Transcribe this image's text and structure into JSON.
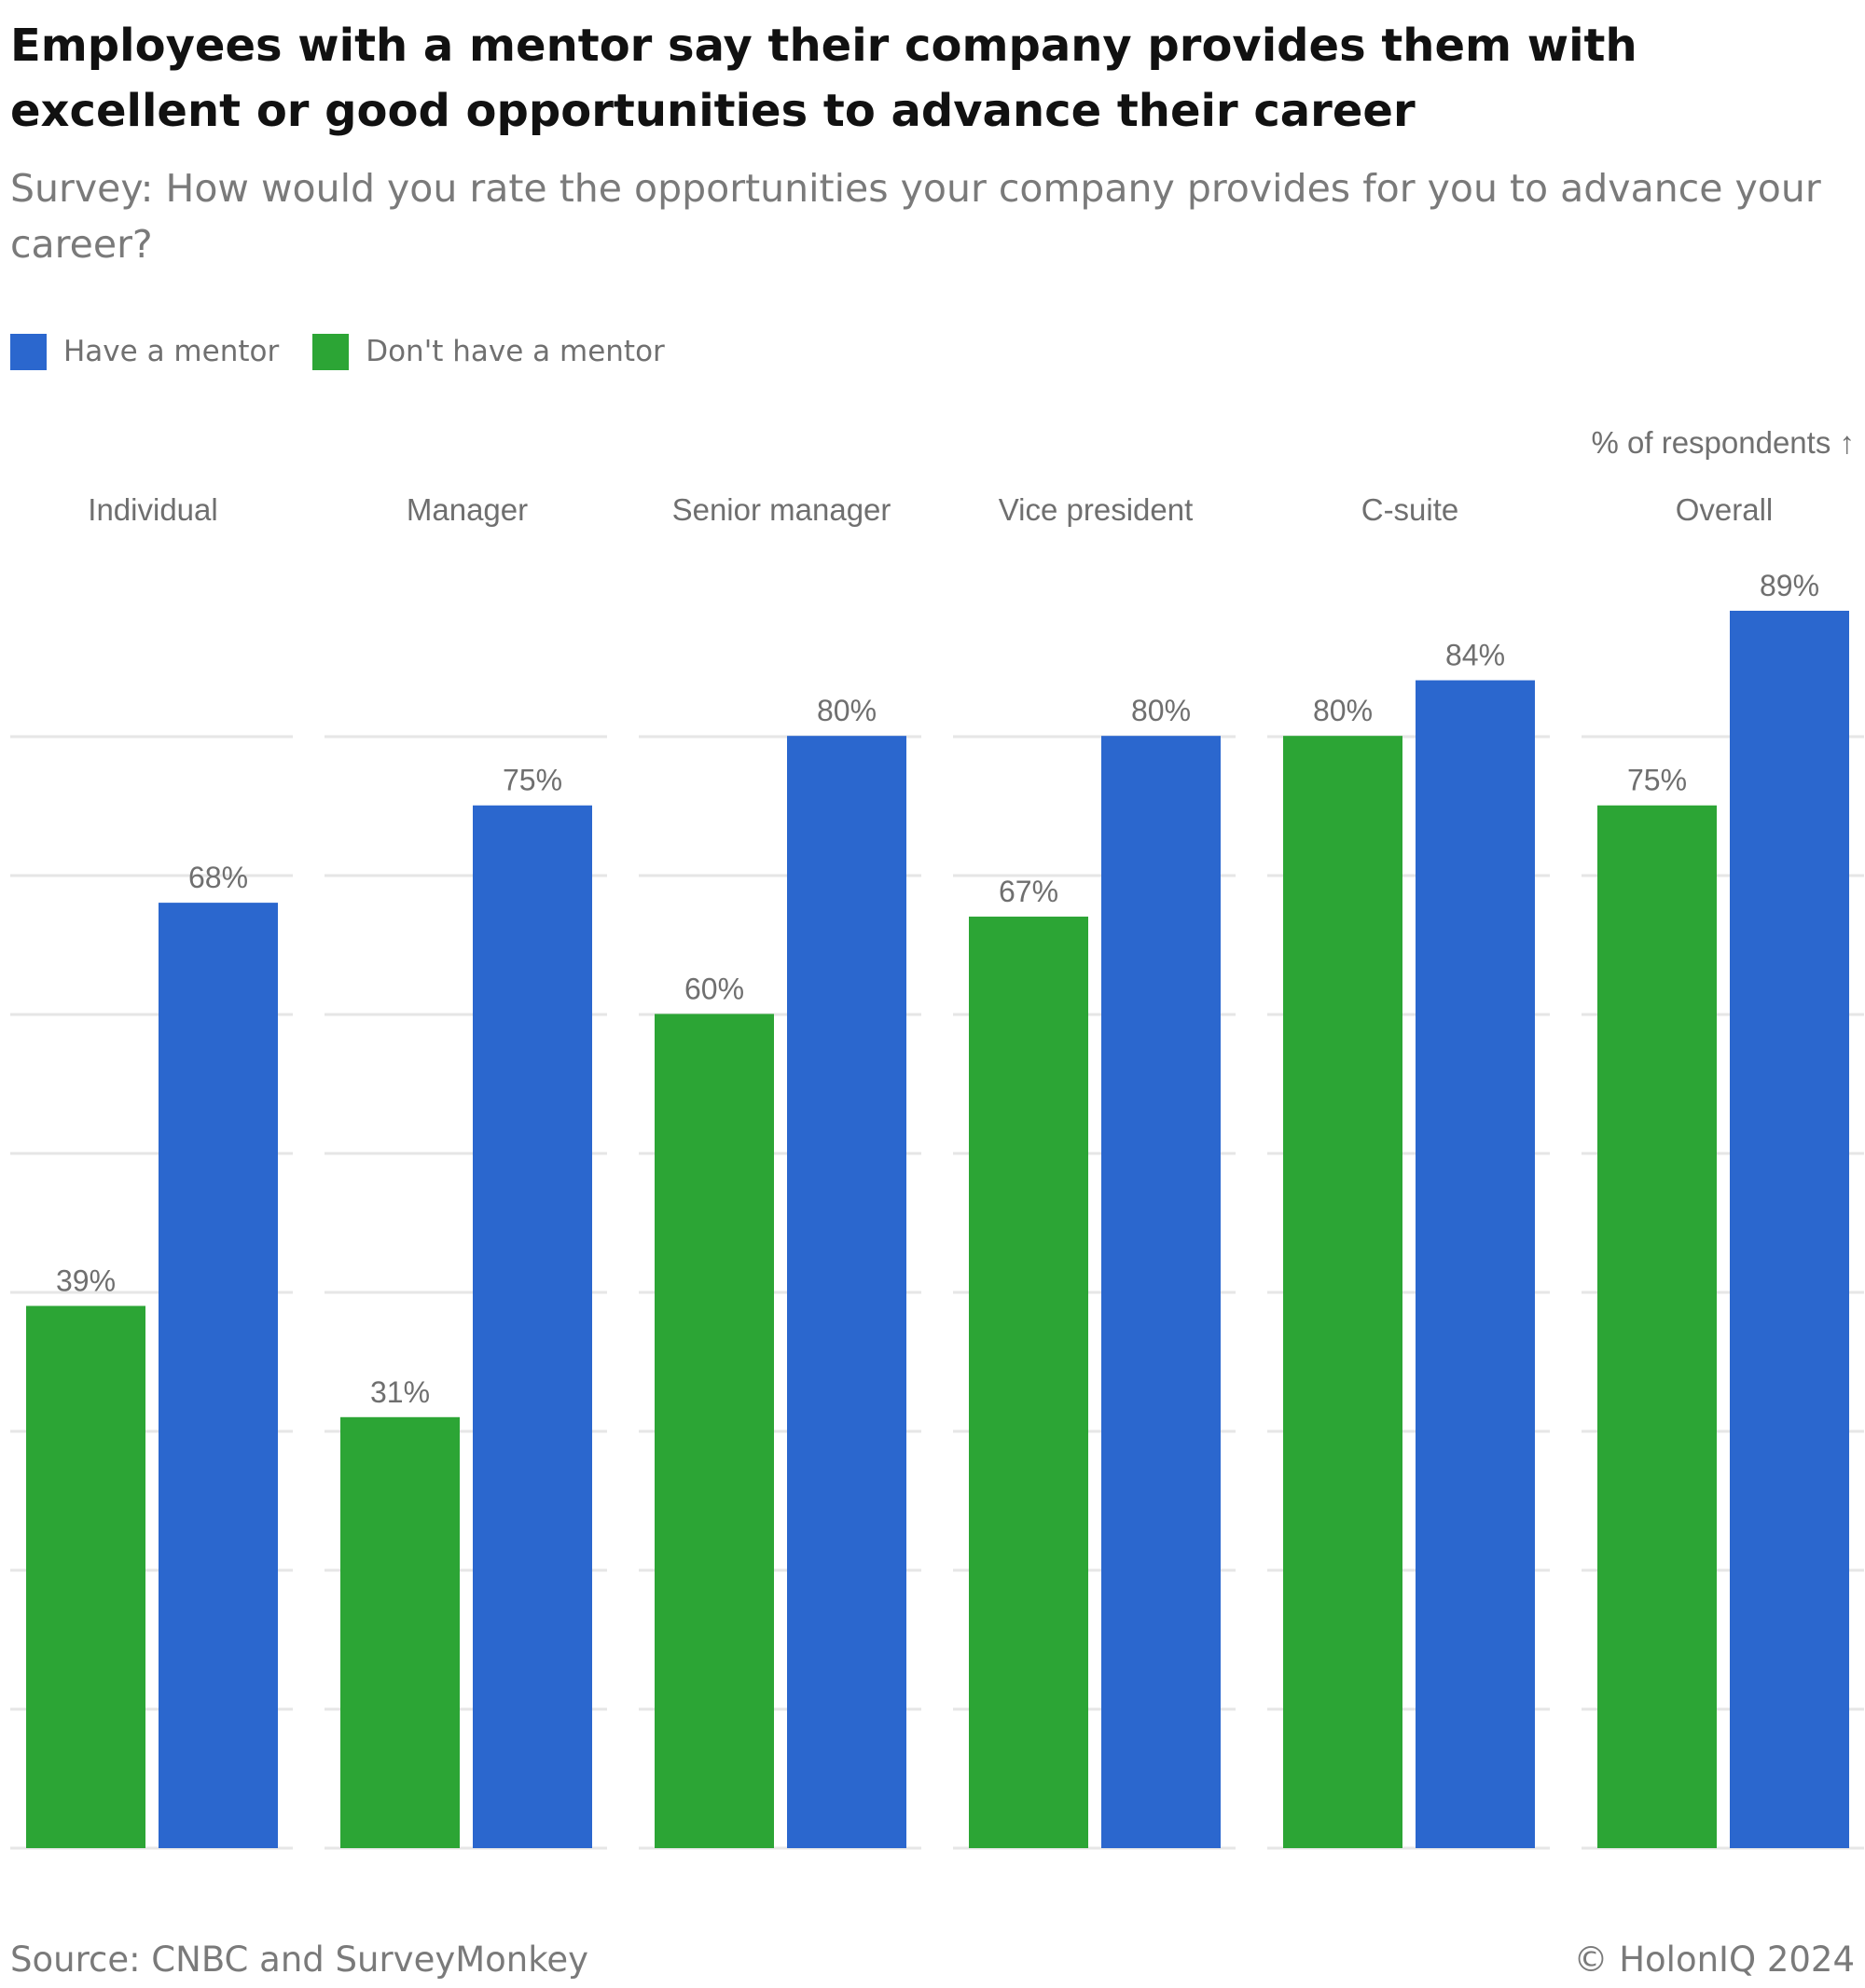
{
  "title": "Employees with a mentor say their company provides them with excellent or good opportunities to advance their career",
  "subtitle": "Survey: How would you rate the opportunities your company provides for you to advance your career?",
  "unit_note": "% of respondents ↑",
  "source": "Source: CNBC and SurveyMonkey",
  "credit": "© HolonIQ 2024",
  "legend": [
    {
      "label": "Have a mentor",
      "color": "#2B67CE"
    },
    {
      "label": "Don't have a mentor",
      "color": "#2CA535"
    }
  ],
  "chart_data": {
    "type": "bar",
    "categories": [
      "Individual",
      "Manager",
      "Senior manager",
      "Vice president",
      "C-suite",
      "Overall"
    ],
    "series": [
      {
        "name": "Don't have a mentor",
        "color": "#2CA535",
        "values": [
          39,
          31,
          60,
          67,
          80,
          75
        ]
      },
      {
        "name": "Have a mentor",
        "color": "#2B67CE",
        "values": [
          68,
          75,
          80,
          80,
          84,
          89
        ]
      }
    ],
    "value_suffix": "%",
    "ylim": [
      0,
      89
    ],
    "grid": true,
    "legend_position": "top-left"
  }
}
